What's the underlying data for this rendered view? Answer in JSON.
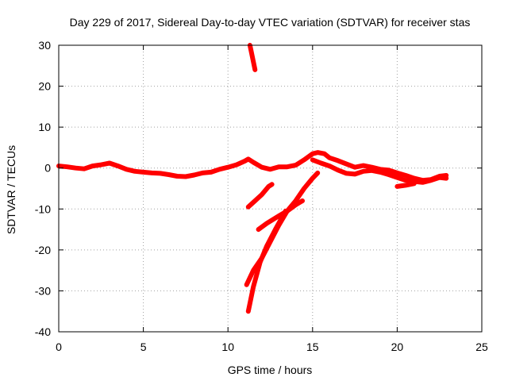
{
  "chart_data": {
    "type": "scatter",
    "title": "Day 229 of 2017, Sidereal Day-to-day VTEC variation (SDTVAR) for receiver stas",
    "xlabel": "GPS time / hours",
    "ylabel": "SDTVAR / TECUs",
    "xlim": [
      0,
      25
    ],
    "ylim": [
      -40,
      30
    ],
    "xticks": [
      0,
      5,
      10,
      15,
      20,
      25
    ],
    "yticks": [
      -40,
      -30,
      -20,
      -10,
      0,
      10,
      20,
      30
    ],
    "grid": true,
    "series_color": "#ff0000",
    "series": [
      {
        "name": "main-trace",
        "points": [
          [
            0,
            0.5
          ],
          [
            0.5,
            0.3
          ],
          [
            1,
            0
          ],
          [
            1.5,
            -0.2
          ],
          [
            2,
            0.5
          ],
          [
            2.5,
            0.8
          ],
          [
            3,
            1.2
          ],
          [
            3.5,
            0.5
          ],
          [
            4,
            -0.3
          ],
          [
            4.5,
            -0.8
          ],
          [
            5,
            -1
          ],
          [
            5.5,
            -1.2
          ],
          [
            6,
            -1.3
          ],
          [
            6.5,
            -1.6
          ],
          [
            7,
            -2
          ],
          [
            7.5,
            -2.1
          ],
          [
            8,
            -1.7
          ],
          [
            8.5,
            -1.2
          ],
          [
            9,
            -1
          ],
          [
            9.5,
            -0.3
          ],
          [
            10,
            0.2
          ],
          [
            10.5,
            0.8
          ],
          [
            11,
            1.7
          ],
          [
            11.2,
            2.2
          ],
          [
            11.5,
            1.4
          ],
          [
            12,
            0.2
          ],
          [
            12.5,
            -0.3
          ],
          [
            13,
            0.3
          ],
          [
            13.5,
            0.3
          ],
          [
            14,
            0.7
          ],
          [
            14.5,
            2
          ],
          [
            15,
            3.5
          ],
          [
            15.3,
            3.8
          ],
          [
            15.7,
            3.5
          ],
          [
            16,
            2.5
          ],
          [
            16.5,
            1.8
          ],
          [
            17,
            1
          ],
          [
            17.5,
            0.2
          ],
          [
            18,
            0.6
          ],
          [
            18.5,
            0.2
          ],
          [
            19,
            -0.3
          ],
          [
            19.5,
            -0.5
          ],
          [
            20,
            -1.2
          ],
          [
            20.5,
            -1.8
          ],
          [
            21,
            -2.5
          ],
          [
            21.5,
            -3
          ],
          [
            22,
            -2.8
          ],
          [
            22.5,
            -2
          ],
          [
            22.9,
            -1.8
          ]
        ]
      },
      {
        "name": "lower-branch",
        "points": [
          [
            15,
            2
          ],
          [
            15.5,
            1.2
          ],
          [
            16,
            0.5
          ],
          [
            16.5,
            -0.5
          ],
          [
            17,
            -1.3
          ],
          [
            17.5,
            -1.5
          ],
          [
            18,
            -0.8
          ],
          [
            18.5,
            -0.6
          ],
          [
            19,
            -1
          ],
          [
            19.5,
            -1.6
          ],
          [
            20,
            -2.3
          ],
          [
            20.5,
            -3
          ],
          [
            21,
            -3.3
          ],
          [
            21.5,
            -3.5
          ],
          [
            22,
            -3
          ],
          [
            22.5,
            -2.3
          ],
          [
            22.9,
            -2.5
          ]
        ]
      },
      {
        "name": "segment-20h",
        "points": [
          [
            20,
            -4.5
          ],
          [
            20.5,
            -4.2
          ],
          [
            21,
            -3.8
          ]
        ]
      },
      {
        "name": "arc-upper",
        "points": [
          [
            11.3,
            30
          ],
          [
            11.6,
            24
          ]
        ]
      },
      {
        "name": "arc-steep",
        "points": [
          [
            11.2,
            -35
          ],
          [
            11.5,
            -29
          ],
          [
            11.9,
            -23
          ],
          [
            12.3,
            -19
          ],
          [
            12.8,
            -15
          ],
          [
            13.4,
            -10.5
          ]
        ]
      },
      {
        "name": "arc-mid",
        "points": [
          [
            11.1,
            -28.5
          ],
          [
            11.5,
            -25
          ],
          [
            12,
            -22
          ],
          [
            12.5,
            -18
          ],
          [
            13,
            -14
          ],
          [
            13.5,
            -10.5
          ],
          [
            14,
            -8
          ],
          [
            14.5,
            -5
          ],
          [
            15,
            -2.5
          ],
          [
            15.3,
            -1.2
          ]
        ]
      },
      {
        "name": "arc-short-left",
        "points": [
          [
            11.2,
            -9.5
          ],
          [
            11.6,
            -8
          ],
          [
            12,
            -6.5
          ],
          [
            12.4,
            -4.5
          ],
          [
            12.6,
            -4
          ]
        ]
      },
      {
        "name": "arc-short-right",
        "points": [
          [
            11.8,
            -15
          ],
          [
            12.3,
            -13.5
          ],
          [
            13,
            -11.7
          ],
          [
            13.5,
            -10.5
          ],
          [
            14,
            -9
          ],
          [
            14.4,
            -8
          ]
        ]
      }
    ]
  }
}
